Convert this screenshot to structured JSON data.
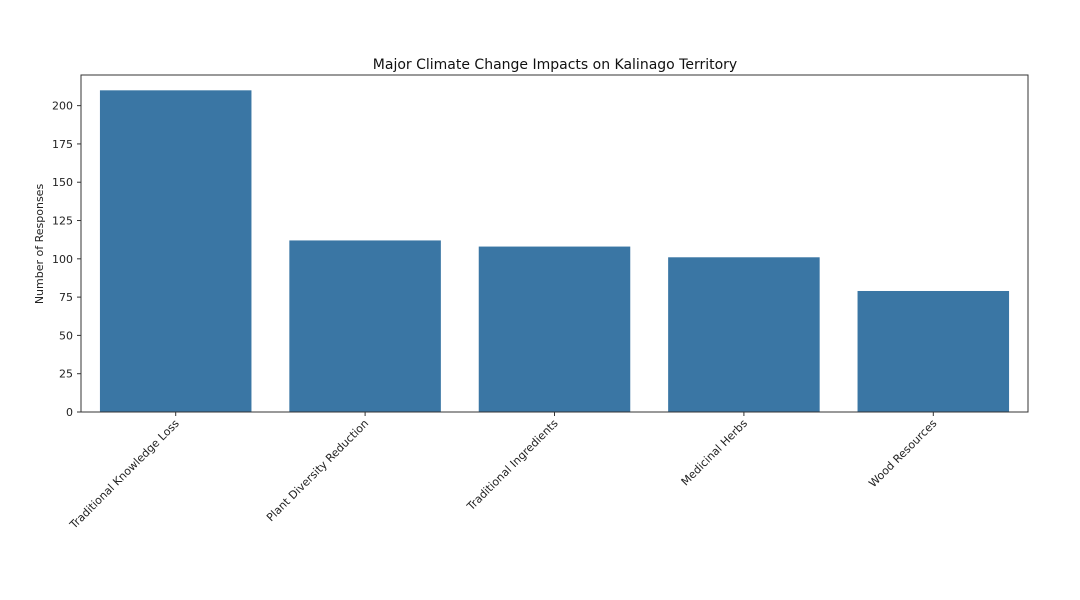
{
  "chart_data": {
    "type": "bar",
    "title": "Major Climate Change Impacts on Kalinago Territory",
    "xlabel": "",
    "ylabel": "Number of Responses",
    "categories": [
      "Traditional Knowledge Loss",
      "Plant Diversity Reduction",
      "Traditional Ingredients",
      "Medicinal Herbs",
      "Wood Resources"
    ],
    "values": [
      210,
      112,
      108,
      101,
      79
    ],
    "ylim": [
      0,
      220
    ],
    "yticks": [
      0,
      25,
      50,
      75,
      100,
      125,
      150,
      175,
      200
    ],
    "grid": false,
    "legend": "none",
    "colors": {
      "bar": "#3a76a4",
      "axis": "#333333"
    }
  }
}
